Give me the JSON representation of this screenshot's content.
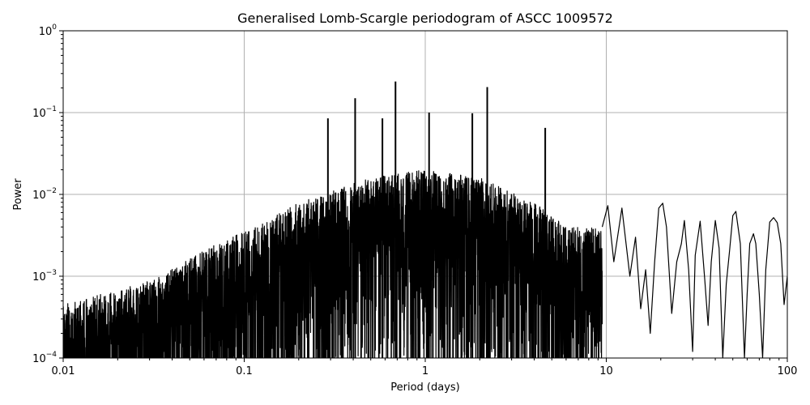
{
  "chart_data": {
    "type": "line",
    "title": "Generalised Lomb-Scargle periodogram of ASCC 1009572",
    "xlabel": "Period (days)",
    "ylabel": "Power",
    "xscale": "log",
    "yscale": "log",
    "xlim": [
      0.01,
      100
    ],
    "ylim": [
      0.0001,
      1
    ],
    "grid": true,
    "x_ticks": [
      {
        "value": 0.01,
        "label": "0.01"
      },
      {
        "value": 0.1,
        "label": "0.1"
      },
      {
        "value": 1,
        "label": "1"
      },
      {
        "value": 10,
        "label": "10"
      },
      {
        "value": 100,
        "label": "100"
      }
    ],
    "y_ticks": [
      {
        "value": 0.0001,
        "base": "10",
        "exp": "−4"
      },
      {
        "value": 0.001,
        "base": "10",
        "exp": "−3"
      },
      {
        "value": 0.01,
        "base": "10",
        "exp": "−2"
      },
      {
        "value": 0.1,
        "base": "10",
        "exp": "−1"
      },
      {
        "value": 1,
        "base": "10",
        "exp": "0"
      }
    ],
    "peaks": [
      {
        "x": 0.29,
        "y": 0.085
      },
      {
        "x": 0.41,
        "y": 0.15
      },
      {
        "x": 0.58,
        "y": 0.085
      },
      {
        "x": 0.685,
        "y": 0.24
      },
      {
        "x": 1.05,
        "y": 0.1
      },
      {
        "x": 1.82,
        "y": 0.098
      },
      {
        "x": 2.2,
        "y": 0.205
      },
      {
        "x": 4.6,
        "y": 0.065
      }
    ],
    "smooth_series": {
      "x": [
        9.5,
        10.2,
        11.0,
        12.2,
        13.5,
        14.5,
        15.5,
        16.5,
        17.5,
        18.5,
        19.5,
        20.5,
        21.5,
        23.0,
        24.5,
        26.0,
        27.0,
        28.5,
        30.0,
        31.0,
        33.0,
        35.0,
        36.5,
        38.0,
        40.0,
        42.0,
        44.0,
        46.0,
        48.0,
        50.0,
        52.0,
        55.0,
        58.0,
        60.0,
        62.0,
        65.0,
        67.0,
        70.0,
        73.0,
        76.0,
        80.0,
        84.0,
        88.0,
        92.0,
        96.0,
        100.0
      ],
      "y": [
        0.004,
        0.0073,
        0.0015,
        0.0068,
        0.001,
        0.003,
        0.0004,
        0.0012,
        0.0002,
        0.0015,
        0.0068,
        0.0078,
        0.004,
        0.00035,
        0.0015,
        0.0025,
        0.0048,
        0.0012,
        0.00012,
        0.0018,
        0.0047,
        0.0009,
        0.00025,
        0.0015,
        0.0048,
        0.0022,
        0.0001,
        0.0008,
        0.0021,
        0.0055,
        0.0062,
        0.0025,
        0.0001,
        0.0006,
        0.0025,
        0.0033,
        0.0025,
        0.0006,
        0.0001,
        0.0012,
        0.0046,
        0.0052,
        0.0045,
        0.0025,
        0.00045,
        0.001
      ]
    }
  }
}
